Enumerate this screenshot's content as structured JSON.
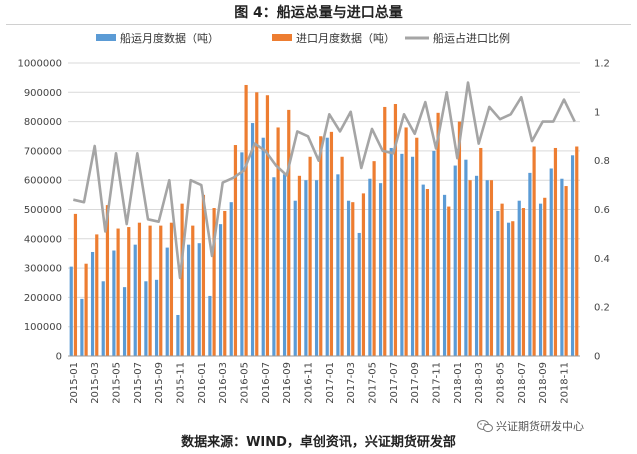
{
  "figure": {
    "title": "图 4：船运总量与进口总量",
    "source": "数据来源：WIND，卓创资讯，兴证期货研发部",
    "watermark": "兴证期货研发中心"
  },
  "colors": {
    "ship": "#5b9bd5",
    "import": "#ed7d31",
    "ratio": "#a5a5a5",
    "grid": "#d9d9d9",
    "axis": "#999999"
  },
  "chart_data": {
    "type": "bar",
    "title": "图 4：船运总量与进口总量",
    "xlabel": "",
    "ylabel": "",
    "ylim": [
      0,
      1000000
    ],
    "y2lim": [
      0,
      1.2
    ],
    "y_ticks": [
      "0",
      "100000",
      "200000",
      "300000",
      "400000",
      "500000",
      "600000",
      "700000",
      "800000",
      "900000",
      "1000000"
    ],
    "y2_ticks": [
      "0",
      "0.2",
      "0.4",
      "0.6",
      "0.8",
      "1",
      "1.2"
    ],
    "legend_position": "top",
    "categories": [
      "2015-01",
      "2015-02",
      "2015-03",
      "2015-04",
      "2015-05",
      "2015-06",
      "2015-07",
      "2015-08",
      "2015-09",
      "2015-10",
      "2015-11",
      "2015-12",
      "2016-01",
      "2016-02",
      "2016-03",
      "2016-04",
      "2016-05",
      "2016-06",
      "2016-07",
      "2016-08",
      "2016-09",
      "2016-10",
      "2016-11",
      "2016-12",
      "2017-01",
      "2017-02",
      "2017-03",
      "2017-04",
      "2017-05",
      "2017-06",
      "2017-07",
      "2017-08",
      "2017-09",
      "2017-10",
      "2017-11",
      "2017-12",
      "2018-01",
      "2018-02",
      "2018-03",
      "2018-04",
      "2018-05",
      "2018-06",
      "2018-07",
      "2018-08",
      "2018-09",
      "2018-10",
      "2018-11",
      "2018-12"
    ],
    "x_tick_labels": [
      "2015-01",
      "2015-03",
      "2015-05",
      "2015-07",
      "2015-09",
      "2015-11",
      "2016-01",
      "2016-03",
      "2016-05",
      "2016-07",
      "2016-09",
      "2016-11",
      "2017-01",
      "2017-03",
      "2017-05",
      "2017-07",
      "2017-09",
      "2017-11",
      "2018-01",
      "2018-03",
      "2018-05",
      "2018-07",
      "2018-09",
      "2018-11"
    ],
    "series": [
      {
        "name": "船运月度数据（吨）",
        "type": "bar",
        "axis": "left",
        "values": [
          305000,
          195000,
          355000,
          255000,
          360000,
          235000,
          380000,
          255000,
          260000,
          370000,
          140000,
          380000,
          385000,
          205000,
          450000,
          525000,
          695000,
          795000,
          745000,
          610000,
          620000,
          530000,
          600000,
          600000,
          745000,
          620000,
          530000,
          420000,
          605000,
          590000,
          710000,
          690000,
          680000,
          585000,
          700000,
          550000,
          650000,
          670000,
          615000,
          600000,
          495000,
          455000,
          530000,
          625000,
          520000,
          640000,
          605000,
          685000
        ]
      },
      {
        "name": "进口月度数据（吨）",
        "type": "bar",
        "axis": "left",
        "values": [
          485000,
          315000,
          415000,
          515000,
          435000,
          440000,
          455000,
          445000,
          445000,
          455000,
          520000,
          445000,
          550000,
          505000,
          495000,
          720000,
          925000,
          900000,
          890000,
          780000,
          840000,
          615000,
          680000,
          750000,
          765000,
          680000,
          525000,
          555000,
          665000,
          850000,
          860000,
          780000,
          745000,
          570000,
          830000,
          510000,
          800000,
          600000,
          710000,
          600000,
          520000,
          460000,
          505000,
          715000,
          540000,
          710000,
          580000,
          715000
        ]
      },
      {
        "name": "船运占进口比例",
        "type": "line",
        "axis": "right",
        "values": [
          0.64,
          0.63,
          0.86,
          0.51,
          0.83,
          0.54,
          0.83,
          0.56,
          0.55,
          0.72,
          0.32,
          0.72,
          0.7,
          0.41,
          0.71,
          0.73,
          0.76,
          0.87,
          0.84,
          0.78,
          0.74,
          0.92,
          0.9,
          0.8,
          0.99,
          0.92,
          1.0,
          0.77,
          0.93,
          0.84,
          0.83,
          0.99,
          0.91,
          1.04,
          0.85,
          1.08,
          0.81,
          1.12,
          0.87,
          1.02,
          0.97,
          0.99,
          1.06,
          0.88,
          0.96,
          0.96,
          1.05,
          0.96
        ]
      }
    ]
  }
}
